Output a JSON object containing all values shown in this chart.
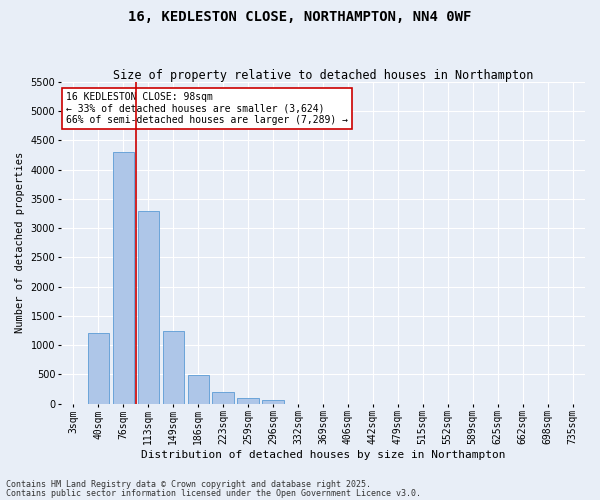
{
  "title": "16, KEDLESTON CLOSE, NORTHAMPTON, NN4 0WF",
  "subtitle": "Size of property relative to detached houses in Northampton",
  "xlabel": "Distribution of detached houses by size in Northampton",
  "ylabel": "Number of detached properties",
  "categories": [
    "3sqm",
    "40sqm",
    "76sqm",
    "113sqm",
    "149sqm",
    "186sqm",
    "223sqm",
    "259sqm",
    "296sqm",
    "332sqm",
    "369sqm",
    "406sqm",
    "442sqm",
    "479sqm",
    "515sqm",
    "552sqm",
    "589sqm",
    "625sqm",
    "662sqm",
    "698sqm",
    "735sqm"
  ],
  "values": [
    0,
    1200,
    4300,
    3300,
    1250,
    490,
    200,
    100,
    60,
    0,
    0,
    0,
    0,
    0,
    0,
    0,
    0,
    0,
    0,
    0,
    0
  ],
  "bar_color": "#aec6e8",
  "bar_edge_color": "#5b9bd5",
  "vline_color": "#cc0000",
  "annotation_text": "16 KEDLESTON CLOSE: 98sqm\n← 33% of detached houses are smaller (3,624)\n66% of semi-detached houses are larger (7,289) →",
  "annotation_box_color": "#ffffff",
  "annotation_box_edge": "#cc0000",
  "ylim": [
    0,
    5500
  ],
  "yticks": [
    0,
    500,
    1000,
    1500,
    2000,
    2500,
    3000,
    3500,
    4000,
    4500,
    5000,
    5500
  ],
  "footer_line1": "Contains HM Land Registry data © Crown copyright and database right 2025.",
  "footer_line2": "Contains public sector information licensed under the Open Government Licence v3.0.",
  "bg_color": "#e8eef7",
  "plot_bg_color": "#e8eef7",
  "title_fontsize": 10,
  "subtitle_fontsize": 8.5,
  "xlabel_fontsize": 8,
  "ylabel_fontsize": 7.5,
  "tick_fontsize": 7,
  "annot_fontsize": 7,
  "footer_fontsize": 6
}
